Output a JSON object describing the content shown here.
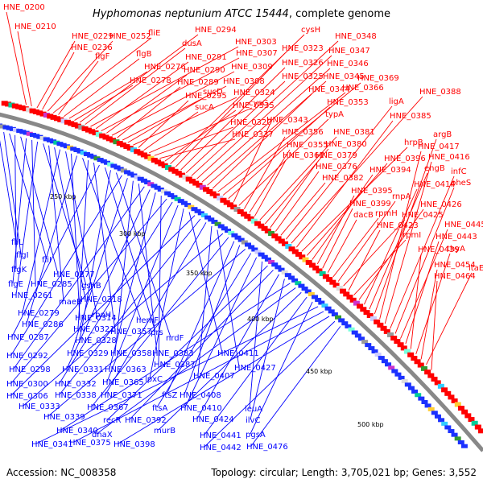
{
  "title": {
    "organism": "Hyphomonas neptunium ATCC 15444",
    "suffix": ", complete genome"
  },
  "footer": {
    "accession": "Accession: NC_008358",
    "topology": "Topology: circular; Length: 3,705,021 bp; Genes: 3,552"
  },
  "colors": {
    "forward": "#ff0000",
    "reverse": "#0000ff",
    "backbone": "#888888",
    "rna": "#00aa00"
  },
  "scale_labels": [
    "250 kbp",
    "300 kbp",
    "350 kbp",
    "400 kbp",
    "450 kbp",
    "500 kbp"
  ],
  "forward_labels": [
    "HNE_0200",
    "HNE_0210",
    "HNE_0229",
    "HNE_0236",
    "HNE_0252",
    "fliE",
    "flgF",
    "flgB",
    "HNE_0276",
    "HNE_0278",
    "HNE_0294",
    "dusA",
    "HNE_0303",
    "HNE_0291",
    "HNE_0307",
    "HNE_0290",
    "HNE_0309",
    "HNE_0289",
    "HNE_0308",
    "sucD",
    "HNE_0324",
    "HNE_0295",
    "sucA",
    "cysG",
    "HNE_0320",
    "HNE_0337",
    "HNE_0335",
    "cysH",
    "HNE_0323",
    "HNE_0326",
    "HNE_0325",
    "HNE_0348",
    "HNE_0347",
    "HNE_0346",
    "HNE_0345",
    "HNE_0344",
    "HNE_0366",
    "HNE_0369",
    "HNE_0353",
    "HNE_0343",
    "typA",
    "HNE_0356",
    "HNE_0355",
    "HNE_0361",
    "HNE_0381",
    "HNE_0380",
    "HNE_0379",
    "HNE_0376",
    "HNE_0382",
    "ligA",
    "HNE_0388",
    "HNE_0385",
    "hrpB",
    "HNE_0396",
    "HNE_0394",
    "HNE_0395",
    "HNE_0399",
    "dacB",
    "rpmH",
    "rnpA",
    "HNE_0425",
    "HNE_0423",
    "rpmI",
    "HNE_0426",
    "HNE_0414",
    "engB",
    "argB",
    "HNE_0417",
    "HNE_0416",
    "infC",
    "pheS",
    "HNE_0445",
    "HNE_0443",
    "HNE_0439",
    "thyA",
    "HNE_0454",
    "ltaE",
    "HNE_0464"
  ],
  "reverse_labels": [
    "fliL",
    "flgI",
    "fliI",
    "flgK",
    "HNE_0277",
    "flgE",
    "HNE_0285",
    "HNE_0261",
    "gshB",
    "maeB",
    "HNE_0318",
    "HNE_0279",
    "rpoH",
    "HNE_0314",
    "HNE_0286",
    "hemF",
    "HNE_0321",
    "HNE_0357",
    "HNE_0287",
    "prs",
    "HNE_0328",
    "nrdF",
    "HNE_0292",
    "HNE_0329",
    "HNE_0358",
    "HNE_0383",
    "HNE_0298",
    "HNE_0331",
    "HNE_0363",
    "HNE_0387",
    "HNE_0300",
    "HNE_0332",
    "HNE_0365",
    "lpxC",
    "HNE_0411",
    "HNE_0306",
    "HNE_0338",
    "HNE_0371",
    "HNE_0407",
    "HNE_0427",
    "HNE_0333",
    "HNE_0367",
    "ftsZ",
    "HNE_0408",
    "HNE_0339",
    "ftsA",
    "HNE_0410",
    "leuA",
    "recR",
    "HNE_0392",
    "HNE_0424",
    "ilvC",
    "HNE_0340",
    "dnaX",
    "murB",
    "HNE_0441",
    "pgsA",
    "HNE_0341",
    "HNE_0375",
    "HNE_0398",
    "HNE_0442",
    "HNE_0476"
  ]
}
